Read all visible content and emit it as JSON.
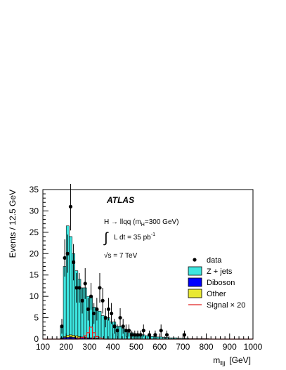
{
  "chart_data": {
    "type": "bar",
    "xlabel": "m_lljj  [GeV]",
    "xlabel_main": "m",
    "xlabel_sub": "lljj",
    "xlabel_unit": "[GeV]",
    "ylabel": "Events / 12.5 GeV",
    "xlim": [
      100,
      1000
    ],
    "ylim": [
      0,
      35
    ],
    "bin_width": 12.5,
    "x_ticks": [
      100,
      200,
      300,
      400,
      500,
      600,
      700,
      800,
      900,
      1000
    ],
    "y_ticks": [
      0,
      5,
      10,
      15,
      20,
      25,
      30,
      35
    ],
    "experiment_label": "ATLAS",
    "annotations": {
      "process": "H → llqq (m",
      "process_sub": "H",
      "process_tail": "=300 GeV)",
      "lumi_prefix": "∫",
      "lumi": "L dt = 35 pb",
      "lumi_sup": "-1",
      "energy_root": "√",
      "energy": "s = 7 TeV"
    },
    "legend_position": "right",
    "legend": [
      {
        "label": "data",
        "kind": "marker"
      },
      {
        "label": "Z + jets",
        "kind": "fill",
        "color": "#3ee6e0"
      },
      {
        "label": "Diboson",
        "kind": "fill",
        "color": "#0000ff"
      },
      {
        "label": "Other",
        "kind": "fill",
        "color": "#e8e832"
      },
      {
        "label": "Signal × 20",
        "kind": "line",
        "color": "#e02020"
      }
    ],
    "series": [
      {
        "name": "Z + jets",
        "color": "#3ee6e0",
        "x": [
          175,
          187.5,
          200,
          212.5,
          225,
          237.5,
          250,
          262.5,
          275,
          287.5,
          300,
          312.5,
          325,
          337.5,
          350,
          362.5,
          375,
          387.5,
          400,
          412.5,
          425,
          437.5,
          450,
          462.5,
          475,
          487.5,
          500,
          512.5,
          525,
          537.5,
          550,
          562.5,
          575,
          587.5,
          600,
          612.5,
          625,
          637.5,
          650,
          662.5,
          675,
          687.5,
          700,
          712.5,
          725,
          737.5,
          750,
          762.5,
          775,
          787.5,
          800
        ],
        "values": [
          3,
          17,
          26.5,
          24,
          20,
          16,
          14,
          12,
          12,
          10,
          10,
          7.5,
          7,
          6.5,
          5.5,
          4.5,
          5,
          4,
          4,
          3,
          3,
          2.5,
          2,
          1.5,
          1.5,
          1.2,
          1,
          1,
          1,
          0.8,
          0.8,
          0.6,
          0.6,
          0.5,
          0.5,
          0.4,
          0.4,
          0.3,
          0.3,
          0.3,
          0.2,
          0.2,
          0.2,
          0.2,
          0.1,
          0.1,
          0.1,
          0.1,
          0.1,
          0.1,
          0.1
        ]
      },
      {
        "name": "Diboson",
        "color": "#0000ff",
        "x": [
          175,
          187.5,
          200,
          212.5,
          225,
          237.5,
          250,
          262.5,
          275,
          287.5,
          300,
          312.5,
          325
        ],
        "values": [
          0.2,
          0.4,
          0.4,
          0.5,
          0.4,
          0.3,
          0.3,
          0.3,
          0.2,
          0.2,
          0.2,
          0.1,
          0.1
        ]
      },
      {
        "name": "Other",
        "color": "#e8e832",
        "x": [
          175,
          187.5,
          200,
          212.5,
          225,
          237.5,
          250,
          262.5,
          275,
          287.5,
          300,
          312.5,
          325
        ],
        "values": [
          0.3,
          0.6,
          0.9,
          1.0,
          0.9,
          0.8,
          0.6,
          0.5,
          0.4,
          0.3,
          0.3,
          0.2,
          0.2
        ]
      },
      {
        "name": "Signal × 20",
        "color": "#e02020",
        "x": [
          250,
          262.5,
          275,
          287.5,
          300,
          312.5,
          325,
          337.5,
          350
        ],
        "values": [
          0.2,
          0.4,
          0.8,
          1.5,
          2.8,
          1.5,
          0.6,
          0.3,
          0.1
        ]
      },
      {
        "name": "data",
        "x": [
          175,
          187.5,
          200,
          212.5,
          225,
          237.5,
          250,
          262.5,
          275,
          287.5,
          300,
          312.5,
          325,
          337.5,
          350,
          362.5,
          375,
          387.5,
          400,
          412.5,
          425,
          437.5,
          450,
          462.5,
          475,
          487.5,
          500,
          512.5,
          525,
          550,
          575,
          600,
          625,
          700
        ],
        "values": [
          3,
          19,
          20,
          31,
          18,
          12,
          12,
          9,
          13,
          7,
          10,
          6,
          7,
          12,
          9,
          5,
          7,
          6,
          3,
          2,
          5,
          3,
          2,
          2,
          1,
          1,
          1,
          1,
          2,
          1,
          1,
          2,
          1,
          1
        ]
      }
    ]
  }
}
